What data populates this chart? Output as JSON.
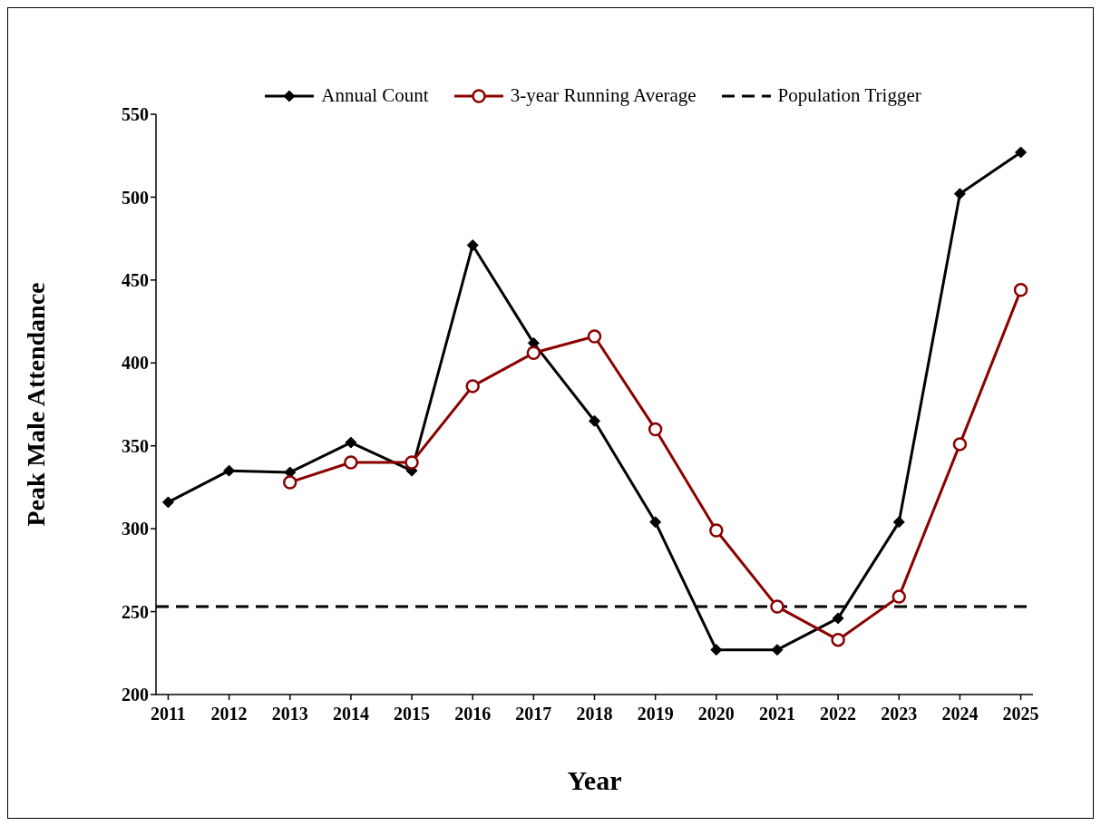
{
  "chart_data": {
    "type": "line",
    "xlabel": "Year",
    "ylabel": "Peak Male Attendance",
    "x": [
      2011,
      2012,
      2013,
      2014,
      2015,
      2016,
      2017,
      2018,
      2019,
      2020,
      2021,
      2022,
      2023,
      2024,
      2025
    ],
    "series": [
      {
        "name": "Annual Count",
        "color": "#000000",
        "marker": "diamond",
        "values": [
          316,
          335,
          334,
          352,
          335,
          471,
          412,
          365,
          304,
          227,
          227,
          246,
          304,
          502,
          527
        ]
      },
      {
        "name": "3-year Running Average",
        "color": "#8b0000",
        "marker": "circle",
        "values": [
          null,
          null,
          328,
          340,
          340,
          386,
          406,
          416,
          360,
          299,
          253,
          233,
          259,
          351,
          444
        ]
      }
    ],
    "ref_lines": [
      {
        "axis": "y",
        "value": 253,
        "label": "Population Trigger",
        "color": "#000000",
        "line_style": "dashed"
      }
    ],
    "xlim": [
      2010.8,
      2025.2
    ],
    "xticks": [
      2011,
      2012,
      2013,
      2014,
      2015,
      2016,
      2017,
      2018,
      2019,
      2020,
      2021,
      2022,
      2023,
      2024,
      2025
    ],
    "ylim": [
      200,
      550
    ],
    "yticks": [
      200,
      250,
      300,
      350,
      400,
      450,
      500,
      550
    ],
    "grid": false,
    "legend": "top",
    "line_style": "solid"
  }
}
